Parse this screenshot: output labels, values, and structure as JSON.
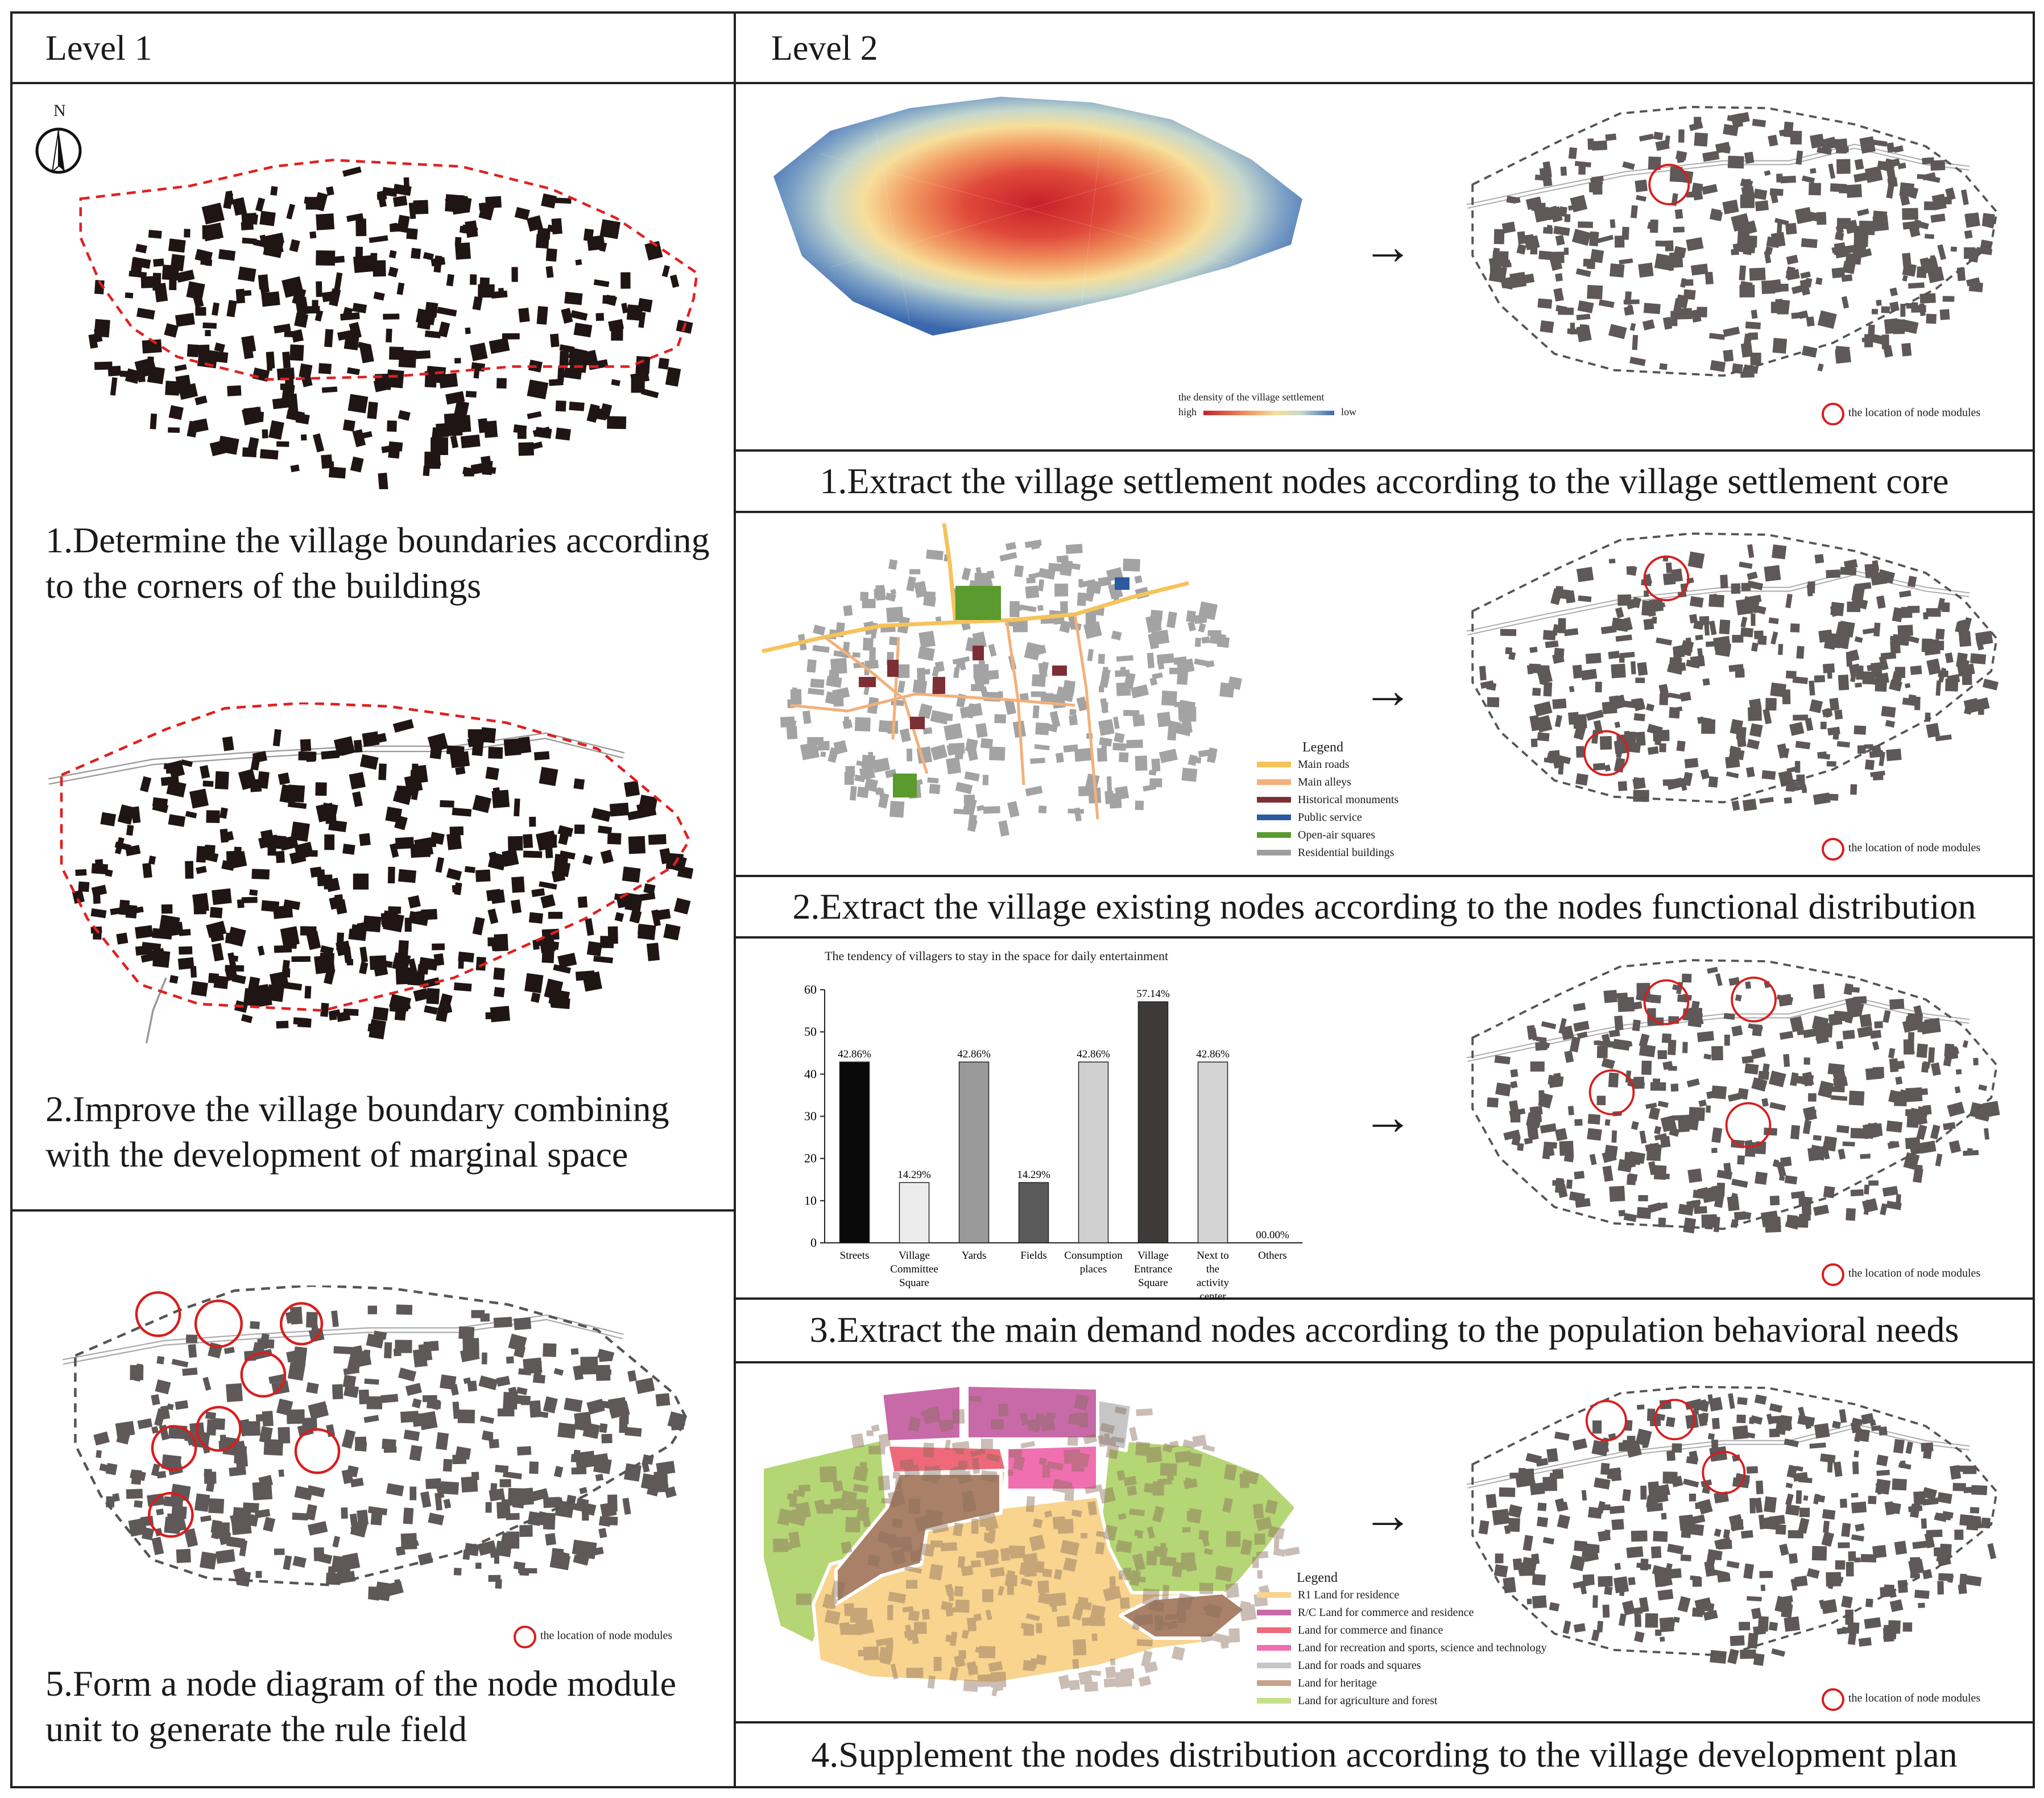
{
  "headers": {
    "level1": "Level 1",
    "level2": "Level 2"
  },
  "compass": {
    "label": "N"
  },
  "level1": {
    "step1": "1.Determine the village boundaries according to the corners of the buildings",
    "step2": "2.Improve the village boundary combining with the development of marginal space",
    "step5": "5.Form a node diagram of the node module unit to generate the rule field"
  },
  "level2": {
    "step1": "1.Extract the village settlement nodes according to the village settlement core",
    "step2": "2.Extract the village existing nodes according to the nodes functional distribution",
    "step3": "3.Extract the main demand nodes according to the population behavioral needs",
    "step4": "4.Supplement the nodes distribution according to the village development plan"
  },
  "arrow": "→",
  "node_legend": "the location of node modules",
  "density_legend": {
    "title": "the density of the village settlement",
    "high": "high",
    "low": "low"
  },
  "functional_legend": {
    "title": "Legend",
    "items": [
      {
        "label": "Main roads",
        "color": "#f5c35a"
      },
      {
        "label": "Main alleys",
        "color": "#f3b07a"
      },
      {
        "label": "Historical monuments",
        "color": "#7d2f36"
      },
      {
        "label": "Public service",
        "color": "#2c5aa0"
      },
      {
        "label": "Open-air squares",
        "color": "#5a9a2e"
      },
      {
        "label": "Residential buildings",
        "color": "#9e9e9e"
      }
    ]
  },
  "landuse_legend": {
    "title": "Legend",
    "items": [
      {
        "label": "R1 Land for residence",
        "color": "#f8d48f"
      },
      {
        "label": "R/C Land for commerce and residence",
        "color": "#c86aa8"
      },
      {
        "label": "Land for commerce and finance",
        "color": "#ee6a7a"
      },
      {
        "label": "Land for recreation and sports, science and technology",
        "color": "#f06fb0"
      },
      {
        "label": "Land for roads and squares",
        "color": "#c6c6c6"
      },
      {
        "label": "Land for heritage",
        "color": "#c7a38a"
      },
      {
        "label": "Land for agriculture and forest",
        "color": "#c6e08a"
      }
    ]
  },
  "chart_data": {
    "type": "bar",
    "title": "The tendency of villagers to stay in the space for daily entertainment",
    "categories": [
      "Streets",
      "Village Committee Square",
      "Yards",
      "Fields",
      "Consumption places",
      "Village Entrance Square",
      "Next to the activity center",
      "Others"
    ],
    "values": [
      42.86,
      14.29,
      42.86,
      14.29,
      42.86,
      57.14,
      42.86,
      0.0
    ],
    "value_labels": [
      "42.86%",
      "14.29%",
      "42.86%",
      "14.29%",
      "42.86%",
      "57.14%",
      "42.86%",
      "00.00%"
    ],
    "colors": [
      "#0a0a0a",
      "#ececec",
      "#9a9a9a",
      "#5a5a5a",
      "#cfcfcf",
      "#3e3a3a",
      "#d4d4d4",
      "#ffffff"
    ],
    "yticks": [
      "0",
      "10",
      "20",
      "30",
      "40",
      "50",
      "60"
    ],
    "ylim": [
      0,
      60
    ],
    "xlabel": "",
    "ylabel": ""
  }
}
